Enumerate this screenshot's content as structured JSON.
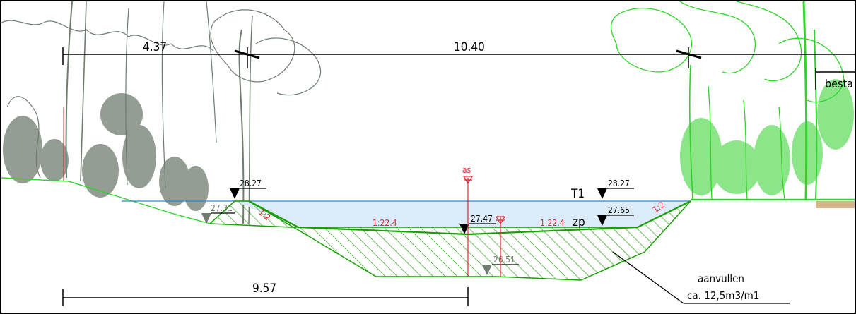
{
  "dimensions": {
    "top_left": "4.37",
    "top_right": "10.40",
    "bottom": "9.57",
    "existing_partial": "besta"
  },
  "levels": {
    "left_top": "28.27",
    "left_side": "27.31",
    "center": "27.47",
    "deep": "26.51",
    "right_top": "28.27",
    "right_mid": "27.65"
  },
  "markers": {
    "axis": "as",
    "t1": "T1",
    "zp": "zp"
  },
  "slopes": {
    "left_bank": "1:2",
    "left_bottom": "1:22.4",
    "right_bottom": "1:22.4",
    "right_bank": "1:2"
  },
  "note": {
    "line1": "aanvullen",
    "line2": "ca. 12,5m3/m1"
  },
  "colors": {
    "line": "#000000",
    "water": "#dcebf9",
    "water_line": "#2f86d6",
    "red": "#e3262d",
    "hatch": "#15a000",
    "tree_gray": "#6f7d70",
    "tree_green": "#2fd32a"
  }
}
